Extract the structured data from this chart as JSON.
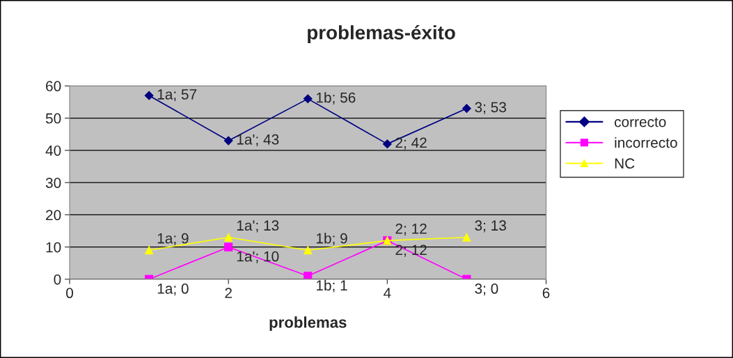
{
  "chart_data": {
    "type": "line",
    "title": "problemas-éxito",
    "xlabel": "problemas",
    "x": [
      1,
      2,
      3,
      4,
      5
    ],
    "series": [
      {
        "name": "correcto",
        "color": "#000080",
        "marker": "diamond",
        "values": [
          57,
          43,
          56,
          42,
          53
        ],
        "value_labels": [
          "1a; 57",
          "1a'; 43",
          "1b; 56",
          "2; 42",
          "3; 53"
        ]
      },
      {
        "name": "incorrecto",
        "color": "#ff00ff",
        "marker": "square",
        "values": [
          0,
          10,
          1,
          12,
          0
        ],
        "value_labels": [
          "1a; 0",
          "1a'; 10",
          "1b; 1",
          "2; 12",
          "3; 0"
        ]
      },
      {
        "name": "NC",
        "color": "#ffff00",
        "marker": "triangle",
        "values": [
          9,
          13,
          9,
          12,
          13
        ],
        "value_labels": [
          "1a; 9",
          "1a'; 13",
          "1b; 9",
          "2; 12",
          "3; 13"
        ]
      }
    ],
    "xlim": [
      0,
      6
    ],
    "xticks": [
      0,
      2,
      4,
      6
    ],
    "ylim": [
      0,
      60
    ],
    "yticks": [
      0,
      10,
      20,
      30,
      40,
      50,
      60
    ],
    "grid": "y",
    "legend": "right"
  }
}
